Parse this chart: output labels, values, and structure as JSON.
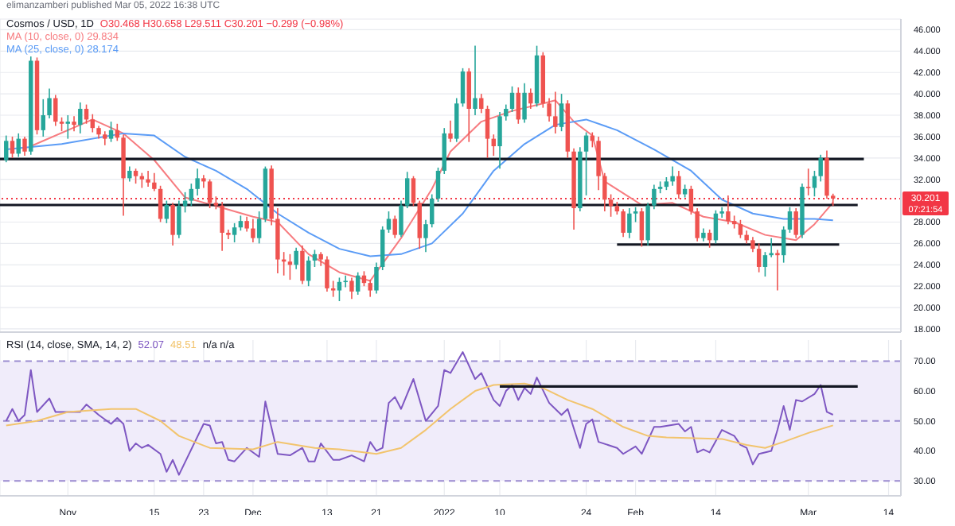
{
  "chart_data": [
    {
      "type": "candlestick",
      "title": "Cosmos / USD, 1D",
      "subtitle": "O30.468 H30.658 L29.511 C30.201 −0.299 (−0.98%)",
      "annotations": [
        "elimanzamberi published Mar 05, 2022 16:38 UTC",
        "07:21:54"
      ],
      "x": [
        "2021-10-22",
        "2021-10-23",
        "2021-10-24",
        "2021-10-25",
        "2021-10-26",
        "2021-10-27",
        "2021-10-28",
        "2021-10-29",
        "2021-10-30",
        "2021-10-31",
        "2021-11-01",
        "2021-11-02",
        "2021-11-03",
        "2021-11-04",
        "2021-11-05",
        "2021-11-06",
        "2021-11-07",
        "2021-11-08",
        "2021-11-09",
        "2021-11-10",
        "2021-11-11",
        "2021-11-12",
        "2021-11-13",
        "2021-11-14",
        "2021-11-15",
        "2021-11-16",
        "2021-11-17",
        "2021-11-18",
        "2021-11-19",
        "2021-11-20",
        "2021-11-21",
        "2021-11-22",
        "2021-11-23",
        "2021-11-24",
        "2021-11-25",
        "2021-11-26",
        "2021-11-27",
        "2021-11-28",
        "2021-11-29",
        "2021-11-30",
        "2021-12-01",
        "2021-12-02",
        "2021-12-03",
        "2021-12-04",
        "2021-12-05",
        "2021-12-06",
        "2021-12-07",
        "2021-12-08",
        "2021-12-09",
        "2021-12-10",
        "2021-12-11",
        "2021-12-12",
        "2021-12-13",
        "2021-12-14",
        "2021-12-15",
        "2021-12-16",
        "2021-12-17",
        "2021-12-18",
        "2021-12-19",
        "2021-12-20",
        "2021-12-21",
        "2021-12-22",
        "2021-12-23",
        "2021-12-24",
        "2021-12-25",
        "2021-12-26",
        "2021-12-27",
        "2021-12-28",
        "2021-12-29",
        "2021-12-30",
        "2021-12-31",
        "2022-01-01",
        "2022-01-02",
        "2022-01-03",
        "2022-01-04",
        "2022-01-05",
        "2022-01-06",
        "2022-01-07",
        "2022-01-08",
        "2022-01-09",
        "2022-01-10",
        "2022-01-11",
        "2022-01-12",
        "2022-01-13",
        "2022-01-14",
        "2022-01-15",
        "2022-01-16",
        "2022-01-17",
        "2022-01-18",
        "2022-01-19",
        "2022-01-20",
        "2022-01-21",
        "2022-01-22",
        "2022-01-23",
        "2022-01-24",
        "2022-01-25",
        "2022-01-26",
        "2022-01-27",
        "2022-01-28",
        "2022-01-29",
        "2022-01-30",
        "2022-01-31",
        "2022-02-01",
        "2022-02-02",
        "2022-02-03",
        "2022-02-04",
        "2022-02-05",
        "2022-02-06",
        "2022-02-07",
        "2022-02-08",
        "2022-02-09",
        "2022-02-10",
        "2022-02-11",
        "2022-02-12",
        "2022-02-13",
        "2022-02-14",
        "2022-02-15",
        "2022-02-16",
        "2022-02-17",
        "2022-02-18",
        "2022-02-19",
        "2022-02-20",
        "2022-02-21",
        "2022-02-22",
        "2022-02-23",
        "2022-02-24",
        "2022-02-25",
        "2022-02-26",
        "2022-02-27",
        "2022-02-28",
        "2022-03-01",
        "2022-03-02",
        "2022-03-03",
        "2022-03-04",
        "2022-03-05"
      ],
      "ohlc": [
        [
          33.8,
          36.1,
          33.6,
          35.6
        ],
        [
          35.6,
          36.0,
          34.0,
          34.4
        ],
        [
          34.4,
          36.3,
          34.1,
          35.8
        ],
        [
          35.8,
          36.0,
          34.2,
          34.6
        ],
        [
          34.6,
          43.5,
          34.3,
          43.1
        ],
        [
          43.1,
          43.4,
          36.2,
          36.6
        ],
        [
          36.6,
          39.5,
          36.0,
          38.0
        ],
        [
          38.0,
          40.5,
          37.7,
          39.6
        ],
        [
          39.6,
          39.9,
          37.0,
          37.4
        ],
        [
          37.4,
          37.8,
          36.5,
          37.2
        ],
        [
          37.2,
          38.0,
          35.8,
          37.4
        ],
        [
          37.4,
          37.9,
          36.5,
          37.1
        ],
        [
          37.1,
          39.2,
          36.3,
          38.6
        ],
        [
          38.6,
          39.0,
          37.2,
          37.6
        ],
        [
          37.6,
          38.1,
          36.4,
          36.8
        ],
        [
          36.8,
          37.0,
          35.8,
          36.2
        ],
        [
          36.2,
          36.5,
          35.2,
          35.8
        ],
        [
          35.8,
          37.4,
          35.5,
          36.6
        ],
        [
          36.6,
          37.2,
          35.6,
          35.9
        ],
        [
          35.9,
          36.2,
          28.6,
          32.1
        ],
        [
          32.1,
          33.2,
          31.8,
          32.8
        ],
        [
          32.8,
          33.0,
          31.6,
          32.3
        ],
        [
          32.3,
          32.6,
          31.2,
          32.0
        ],
        [
          32.0,
          32.8,
          31.3,
          31.7
        ],
        [
          31.7,
          32.6,
          30.9,
          31.1
        ],
        [
          31.1,
          31.4,
          28.0,
          28.3
        ],
        [
          28.3,
          30.0,
          27.9,
          29.6
        ],
        [
          29.6,
          29.8,
          25.8,
          26.8
        ],
        [
          26.8,
          30.0,
          26.5,
          29.5
        ],
        [
          29.5,
          30.8,
          28.9,
          30.0
        ],
        [
          30.0,
          31.6,
          29.5,
          31.1
        ],
        [
          31.1,
          33.0,
          30.5,
          32.1
        ],
        [
          32.1,
          32.4,
          31.2,
          31.8
        ],
        [
          31.8,
          32.0,
          29.3,
          29.8
        ],
        [
          29.8,
          30.4,
          29.2,
          29.55
        ],
        [
          29.55,
          29.9,
          25.3,
          27.0
        ],
        [
          27.0,
          27.3,
          26.4,
          26.8
        ],
        [
          26.8,
          27.9,
          26.1,
          27.5
        ],
        [
          27.5,
          28.6,
          27.2,
          28.1
        ],
        [
          28.1,
          28.5,
          27.1,
          27.4
        ],
        [
          27.4,
          28.3,
          26.1,
          26.5
        ],
        [
          26.5,
          29.0,
          26.0,
          28.3
        ],
        [
          28.3,
          33.2,
          28.0,
          33.0
        ],
        [
          33.0,
          33.3,
          27.7,
          28.3
        ],
        [
          28.3,
          29.3,
          23.2,
          24.5
        ],
        [
          24.5,
          25.2,
          23.0,
          24.3
        ],
        [
          24.3,
          25.0,
          22.6,
          24.0
        ],
        [
          24.0,
          25.6,
          23.6,
          25.3
        ],
        [
          25.3,
          25.8,
          22.2,
          22.5
        ],
        [
          22.5,
          24.8,
          22.0,
          24.4
        ],
        [
          24.4,
          25.4,
          23.8,
          25.0
        ],
        [
          25.0,
          25.2,
          23.9,
          24.5
        ],
        [
          24.5,
          24.8,
          21.5,
          21.8
        ],
        [
          21.8,
          22.5,
          21.0,
          21.6
        ],
        [
          21.6,
          22.8,
          20.6,
          22.4
        ],
        [
          22.4,
          23.0,
          21.9,
          22.5
        ],
        [
          22.5,
          22.8,
          20.8,
          21.5
        ],
        [
          21.5,
          23.3,
          21.2,
          23.0
        ],
        [
          23.0,
          23.4,
          22.0,
          22.3
        ],
        [
          22.3,
          22.6,
          21.0,
          21.6
        ],
        [
          21.6,
          24.2,
          21.3,
          23.8
        ],
        [
          23.8,
          27.6,
          23.5,
          27.3
        ],
        [
          27.3,
          29.0,
          27.0,
          28.3
        ],
        [
          28.3,
          28.6,
          26.5,
          26.8
        ],
        [
          26.8,
          30.0,
          26.6,
          29.55
        ],
        [
          29.55,
          32.7,
          29.3,
          32.1
        ],
        [
          32.1,
          32.3,
          29.5,
          29.8
        ],
        [
          29.8,
          30.0,
          25.5,
          26.5
        ],
        [
          26.5,
          28.2,
          25.2,
          27.8
        ],
        [
          27.8,
          30.6,
          27.5,
          30.2
        ],
        [
          30.2,
          33.1,
          29.9,
          32.8
        ],
        [
          32.8,
          36.8,
          32.5,
          36.3
        ],
        [
          36.3,
          37.5,
          35.5,
          35.8
        ],
        [
          35.8,
          39.6,
          35.5,
          39.1
        ],
        [
          39.1,
          42.4,
          38.8,
          42.1
        ],
        [
          42.1,
          42.4,
          35.5,
          38.6
        ],
        [
          38.6,
          44.5,
          38.0,
          39.6
        ],
        [
          39.6,
          40.0,
          38.2,
          38.6
        ],
        [
          38.6,
          38.9,
          34.0,
          35.8
        ],
        [
          35.8,
          36.2,
          34.2,
          35.1
        ],
        [
          35.1,
          38.3,
          33.0,
          37.9
        ],
        [
          37.9,
          39.0,
          37.5,
          38.6
        ],
        [
          38.6,
          40.7,
          38.3,
          40.1
        ],
        [
          40.1,
          40.6,
          37.2,
          37.6
        ],
        [
          37.6,
          41.0,
          37.3,
          40.1
        ],
        [
          40.1,
          40.5,
          38.6,
          39.1
        ],
        [
          39.1,
          44.5,
          38.8,
          43.6
        ],
        [
          43.6,
          43.9,
          38.7,
          39.1
        ],
        [
          39.1,
          39.6,
          37.4,
          37.9
        ],
        [
          37.9,
          40.2,
          36.3,
          36.9
        ],
        [
          36.9,
          40.0,
          36.5,
          39.1
        ],
        [
          39.1,
          39.4,
          34.0,
          34.6
        ],
        [
          34.6,
          34.9,
          27.3,
          29.3
        ],
        [
          29.3,
          35.0,
          29.0,
          34.6
        ],
        [
          34.6,
          36.4,
          30.5,
          36.1
        ],
        [
          36.1,
          36.4,
          35.0,
          35.6
        ],
        [
          35.6,
          36.0,
          31.0,
          32.3
        ],
        [
          32.3,
          32.6,
          29.0,
          30.1
        ],
        [
          30.1,
          30.6,
          28.5,
          29.5
        ],
        [
          29.5,
          29.9,
          28.7,
          29.0
        ],
        [
          29.0,
          29.2,
          26.6,
          27.0
        ],
        [
          27.0,
          29.3,
          26.5,
          28.8
        ],
        [
          28.8,
          29.4,
          28.0,
          29.0
        ],
        [
          29.0,
          29.3,
          25.7,
          26.3
        ],
        [
          26.3,
          29.8,
          25.8,
          29.55
        ],
        [
          29.55,
          31.5,
          29.2,
          31.1
        ],
        [
          31.1,
          31.8,
          30.7,
          31.3
        ],
        [
          31.3,
          32.2,
          31.0,
          31.8
        ],
        [
          31.8,
          33.2,
          31.4,
          32.3
        ],
        [
          32.3,
          32.8,
          30.2,
          30.6
        ],
        [
          30.6,
          31.5,
          30.3,
          31.1
        ],
        [
          31.1,
          31.4,
          28.7,
          29.0
        ],
        [
          29.0,
          29.3,
          26.2,
          26.5
        ],
        [
          26.5,
          27.4,
          26.2,
          27.0
        ],
        [
          27.0,
          27.3,
          25.6,
          26.3
        ],
        [
          26.3,
          29.1,
          26.0,
          28.8
        ],
        [
          28.8,
          29.4,
          28.4,
          29.0
        ],
        [
          29.0,
          30.5,
          27.8,
          28.1
        ],
        [
          28.1,
          28.6,
          27.4,
          27.8
        ],
        [
          27.8,
          28.2,
          26.5,
          26.8
        ],
        [
          26.8,
          27.2,
          26.0,
          26.3
        ],
        [
          26.3,
          26.6,
          25.2,
          25.5
        ],
        [
          25.5,
          26.0,
          23.3,
          23.8
        ],
        [
          23.8,
          25.2,
          22.9,
          24.9
        ],
        [
          24.9,
          26.5,
          24.7,
          25.1
        ],
        [
          25.1,
          25.4,
          21.6,
          24.9
        ],
        [
          24.9,
          27.6,
          24.2,
          27.3
        ],
        [
          27.3,
          29.4,
          27.0,
          29.0
        ],
        [
          29.0,
          29.3,
          26.5,
          26.8
        ],
        [
          26.8,
          31.6,
          26.5,
          31.3
        ],
        [
          31.3,
          33.0,
          30.5,
          31.2
        ],
        [
          31.2,
          32.8,
          30.4,
          32.3
        ],
        [
          32.3,
          34.3,
          31.8,
          34.0
        ],
        [
          34.0,
          34.7,
          30.2,
          30.468
        ],
        [
          30.468,
          30.658,
          29.511,
          30.201
        ]
      ],
      "colors": [
        "#26a69a",
        "#ef5350",
        "#26a69a",
        "#ef5350",
        "#26a69a",
        "#ef5350",
        "#26a69a",
        "#26a69a",
        "#ef5350",
        "#ef5350",
        "#26a69a",
        "#ef5350",
        "#26a69a",
        "#ef5350",
        "#ef5350",
        "#ef5350",
        "#ef5350",
        "#26a69a",
        "#ef5350",
        "#ef5350",
        "#26a69a",
        "#ef5350",
        "#ef5350",
        "#ef5350",
        "#ef5350",
        "#ef5350",
        "#26a69a",
        "#ef5350",
        "#26a69a",
        "#26a69a",
        "#26a69a",
        "#26a69a",
        "#ef5350",
        "#ef5350",
        "#ef5350",
        "#ef5350",
        "#ef5350",
        "#26a69a",
        "#26a69a",
        "#ef5350",
        "#ef5350",
        "#26a69a",
        "#26a69a",
        "#ef5350",
        "#ef5350",
        "#ef5350",
        "#ef5350",
        "#26a69a",
        "#ef5350",
        "#26a69a",
        "#26a69a",
        "#ef5350",
        "#ef5350",
        "#ef5350",
        "#26a69a",
        "#26a69a",
        "#ef5350",
        "#26a69a",
        "#ef5350",
        "#ef5350",
        "#26a69a",
        "#26a69a",
        "#26a69a",
        "#ef5350",
        "#26a69a",
        "#26a69a",
        "#ef5350",
        "#ef5350",
        "#26a69a",
        "#26a69a",
        "#26a69a",
        "#26a69a",
        "#ef5350",
        "#26a69a",
        "#26a69a",
        "#ef5350",
        "#26a69a",
        "#ef5350",
        "#ef5350",
        "#ef5350",
        "#26a69a",
        "#26a69a",
        "#26a69a",
        "#ef5350",
        "#26a69a",
        "#ef5350",
        "#26a69a",
        "#ef5350",
        "#ef5350",
        "#ef5350",
        "#26a69a",
        "#ef5350",
        "#ef5350",
        "#26a69a",
        "#26a69a",
        "#ef5350",
        "#ef5350",
        "#ef5350",
        "#ef5350",
        "#ef5350",
        "#ef5350",
        "#26a69a",
        "#26a69a",
        "#ef5350",
        "#26a69a",
        "#26a69a",
        "#26a69a",
        "#26a69a",
        "#26a69a",
        "#ef5350",
        "#26a69a",
        "#ef5350",
        "#ef5350",
        "#26a69a",
        "#ef5350",
        "#26a69a",
        "#26a69a",
        "#ef5350",
        "#ef5350",
        "#ef5350",
        "#ef5350",
        "#ef5350",
        "#ef5350",
        "#26a69a",
        "#26a69a",
        "#ef5350",
        "#26a69a",
        "#26a69a",
        "#ef5350",
        "#26a69a",
        "#ef5350",
        "#26a69a",
        "#26a69a",
        "#ef5350",
        "#ef5350"
      ],
      "series": [
        {
          "type": "line",
          "name": "MA (10, close, 0) 29.834",
          "color": "#f77c80",
          "x": [
            "2021-10-26",
            "2021-11-05",
            "2021-11-10",
            "2021-11-15",
            "2021-11-20",
            "2021-11-25",
            "2021-12-01",
            "2021-12-05",
            "2021-12-10",
            "2021-12-15",
            "2021-12-20",
            "2021-12-25",
            "2021-12-30",
            "2022-01-02",
            "2022-01-07",
            "2022-01-12",
            "2022-01-17",
            "2022-01-19",
            "2022-01-22",
            "2022-01-25",
            "2022-01-27",
            "2022-02-02",
            "2022-02-07",
            "2022-02-12",
            "2022-02-17",
            "2022-02-22",
            "2022-02-27",
            "2022-03-02",
            "2022-03-05"
          ],
          "values": [
            35.1,
            37.6,
            36.3,
            33.8,
            30.3,
            29.5,
            28.5,
            28.0,
            25.0,
            23.3,
            22.5,
            26.5,
            31.1,
            34.6,
            37.4,
            38.4,
            39.1,
            39.4,
            37.4,
            36.1,
            31.8,
            29.6,
            29.8,
            28.5,
            28.0,
            26.8,
            26.3,
            27.8,
            29.834
          ]
        },
        {
          "type": "line",
          "name": "MA (25, close, 0) 28.174",
          "color": "#5b9cf6",
          "x": [
            "2021-10-22",
            "2021-10-31",
            "2021-11-10",
            "2021-11-15",
            "2021-11-20",
            "2021-11-25",
            "2021-11-30",
            "2021-12-05",
            "2021-12-10",
            "2021-12-15",
            "2021-12-20",
            "2021-12-25",
            "2021-12-30",
            "2022-01-04",
            "2022-01-09",
            "2022-01-14",
            "2022-01-19",
            "2022-01-24",
            "2022-01-29",
            "2022-02-04",
            "2022-02-10",
            "2022-02-15",
            "2022-02-20",
            "2022-02-25",
            "2022-03-02",
            "2022-03-05"
          ],
          "values": [
            34.8,
            35.3,
            36.3,
            36.1,
            34.1,
            32.8,
            31.1,
            28.8,
            27.0,
            25.5,
            24.8,
            25.0,
            26.0,
            28.8,
            32.8,
            35.3,
            37.1,
            37.6,
            36.6,
            34.8,
            32.8,
            30.1,
            28.8,
            28.3,
            28.3,
            28.174
          ]
        },
        {
          "type": "line",
          "color": "#131722",
          "x": [
            "2021-10-21",
            "2022-03-10"
          ],
          "values": [
            33.9,
            33.9
          ]
        },
        {
          "type": "line",
          "color": "#131722",
          "x": [
            "2021-10-21",
            "2022-03-09"
          ],
          "values": [
            29.6,
            29.6
          ]
        },
        {
          "type": "line",
          "color": "#131722",
          "x": [
            "2022-01-29",
            "2022-03-06"
          ],
          "values": [
            25.9,
            25.9
          ]
        }
      ],
      "xlim": [
        "2021-10-21",
        "2022-03-16"
      ],
      "xticks": [
        {
          "value": "2021-11-01",
          "label": null
        },
        {
          "value": "2021-11-15",
          "label": null
        },
        {
          "value": "2021-11-23",
          "label": null
        },
        {
          "value": "2021-12-01",
          "label": null
        },
        {
          "value": "2021-12-13",
          "label": null
        },
        {
          "value": "2021-12-21",
          "label": null
        },
        {
          "value": "2022-01-01",
          "label": null
        },
        {
          "value": "2022-01-10",
          "label": null
        },
        {
          "value": "2022-01-24",
          "label": null
        },
        {
          "value": "2022-02-01",
          "label": null
        },
        {
          "value": "2022-02-14",
          "label": null
        },
        {
          "value": "2022-03-01",
          "label": null
        },
        {
          "value": "2022-03-14",
          "label": null
        }
      ],
      "ylim": [
        17.7,
        47
      ],
      "yticks": [
        {
          "value": 18,
          "label": "18.000"
        },
        {
          "value": 20,
          "label": "20.000"
        },
        {
          "value": 22,
          "label": "22.000"
        },
        {
          "value": 24,
          "label": "24.000"
        },
        {
          "value": 26,
          "label": "26.000"
        },
        {
          "value": 28,
          "label": "28.000"
        },
        {
          "value": 32,
          "label": "32.000"
        },
        {
          "value": 34,
          "label": "34.000"
        },
        {
          "value": 36,
          "label": "36.000"
        },
        {
          "value": 38,
          "label": "38.000"
        },
        {
          "value": 40,
          "label": "40.000"
        },
        {
          "value": 42,
          "label": "42.000"
        },
        {
          "value": 44,
          "label": "44.000"
        },
        {
          "value": 46,
          "label": "46.000"
        }
      ],
      "ref_lines": [
        {
          "axis": "y",
          "value": 30.201,
          "label": "30.201",
          "color": "#f23645",
          "line_style": "dotted"
        }
      ],
      "grid": true,
      "legend": "top left",
      "marker": "none",
      "tick_labels": "y"
    },
    {
      "type": "line",
      "legend_title": "RSI (14, close, SMA, 14, 2)",
      "annotations": [
        "n/a n/a"
      ],
      "series": [
        {
          "name": "52.07",
          "color": "#7e57c2",
          "x": [
            "2021-10-22",
            "2021-10-23",
            "2021-10-24",
            "2021-10-25",
            "2021-10-26",
            "2021-10-27",
            "2021-10-29",
            "2021-10-30",
            "2021-11-03",
            "2021-11-04",
            "2021-11-06",
            "2021-11-08",
            "2021-11-09",
            "2021-11-10",
            "2021-11-11",
            "2021-11-12",
            "2021-11-13",
            "2021-11-14",
            "2021-11-16",
            "2021-11-17",
            "2021-11-18",
            "2021-11-19",
            "2021-11-23",
            "2021-11-24",
            "2021-11-25",
            "2021-11-26",
            "2021-11-27",
            "2021-11-28",
            "2021-11-30",
            "2021-12-02",
            "2021-12-03",
            "2021-12-05",
            "2021-12-07",
            "2021-12-09",
            "2021-12-10",
            "2021-12-11",
            "2021-12-12",
            "2021-12-14",
            "2021-12-15",
            "2021-12-17",
            "2021-12-19",
            "2021-12-20",
            "2021-12-21",
            "2021-12-22",
            "2021-12-23",
            "2021-12-24",
            "2021-12-25",
            "2021-12-27",
            "2021-12-29",
            "2021-12-31",
            "2022-01-01",
            "2022-01-02",
            "2022-01-04",
            "2022-01-06",
            "2022-01-07",
            "2022-01-09",
            "2022-01-10",
            "2022-01-11",
            "2022-01-12",
            "2022-01-13",
            "2022-01-14",
            "2022-01-15",
            "2022-01-16",
            "2022-01-18",
            "2022-01-20",
            "2022-01-21",
            "2022-01-23",
            "2022-01-24",
            "2022-01-25",
            "2022-01-26",
            "2022-01-29",
            "2022-01-30",
            "2022-02-01",
            "2022-02-02",
            "2022-02-04",
            "2022-02-05",
            "2022-02-08",
            "2022-02-09",
            "2022-02-10",
            "2022-02-11",
            "2022-02-12",
            "2022-02-13",
            "2022-02-15",
            "2022-02-17",
            "2022-02-18",
            "2022-02-19",
            "2022-02-20",
            "2022-02-21",
            "2022-02-23",
            "2022-02-24",
            "2022-02-25",
            "2022-02-26",
            "2022-02-27",
            "2022-02-28",
            "2022-03-02",
            "2022-03-03",
            "2022-03-04",
            "2022-03-05"
          ],
          "values": [
            50,
            54,
            50,
            52,
            67,
            53,
            57.5,
            53,
            53,
            55.5,
            52,
            49,
            51,
            49,
            40,
            42.5,
            41,
            42,
            39,
            33,
            37,
            32,
            49,
            48.5,
            42.5,
            43,
            37,
            36.5,
            41,
            38,
            56.5,
            39,
            38.5,
            41,
            36.5,
            36.5,
            42.5,
            37,
            37,
            38.5,
            36.5,
            43,
            40,
            41,
            56,
            58,
            54,
            64,
            50,
            55,
            67,
            66,
            73,
            64,
            66,
            57,
            55,
            60,
            62,
            57,
            61,
            59,
            64.5,
            56,
            52,
            54,
            41,
            49,
            50.5,
            43,
            41,
            39,
            41.5,
            39,
            48,
            48,
            49,
            46.5,
            48,
            39.5,
            40.5,
            39.5,
            47,
            45,
            42,
            41,
            35.5,
            39,
            40,
            47,
            55,
            47,
            57,
            56.5,
            59,
            62,
            53,
            52.07
          ]
        },
        {
          "name": "48.51",
          "color": "#f2c46d",
          "x": [
            "2021-10-22",
            "2021-10-27",
            "2021-11-01",
            "2021-11-08",
            "2021-11-12",
            "2021-11-16",
            "2021-11-19",
            "2021-11-24",
            "2021-12-01",
            "2021-12-05",
            "2021-12-11",
            "2021-12-15",
            "2021-12-21",
            "2021-12-25",
            "2021-12-29",
            "2022-01-02",
            "2022-01-06",
            "2022-01-09",
            "2022-01-14",
            "2022-01-17",
            "2022-01-21",
            "2022-01-25",
            "2022-01-30",
            "2022-02-03",
            "2022-02-06",
            "2022-02-15",
            "2022-02-19",
            "2022-02-22",
            "2022-02-25",
            "2022-03-01",
            "2022-03-05"
          ],
          "values": [
            48.5,
            50,
            53,
            54,
            54,
            50,
            45,
            41,
            40.5,
            43,
            41,
            40.5,
            39,
            41,
            47,
            54,
            60,
            62,
            62.5,
            61,
            57,
            54,
            48,
            45,
            44.5,
            44,
            42,
            41,
            43,
            46,
            48.51
          ]
        },
        {
          "color": "#131722",
          "x": [
            "2022-01-10",
            "2022-03-09"
          ],
          "values": [
            61.5,
            61.5
          ]
        }
      ],
      "xlim": [
        "2021-10-21",
        "2022-03-16"
      ],
      "xticks": [
        {
          "value": "2021-11-01",
          "label": "Nov"
        },
        {
          "value": "2021-11-15",
          "label": "15"
        },
        {
          "value": "2021-11-23",
          "label": "23"
        },
        {
          "value": "2021-12-01",
          "label": "Dec"
        },
        {
          "value": "2021-12-13",
          "label": "13"
        },
        {
          "value": "2021-12-21",
          "label": "21"
        },
        {
          "value": "2022-01-01",
          "label": "2022"
        },
        {
          "value": "2022-01-10",
          "label": "10"
        },
        {
          "value": "2022-01-24",
          "label": "24"
        },
        {
          "value": "2022-02-01",
          "label": "Feb"
        },
        {
          "value": "2022-02-14",
          "label": "14"
        },
        {
          "value": "2022-03-01",
          "label": "Mar"
        },
        {
          "value": "2022-03-14",
          "label": "14"
        }
      ],
      "ylim": [
        25,
        77
      ],
      "yticks": [
        {
          "value": 30,
          "label": "30.00"
        },
        {
          "value": 40,
          "label": "40.00"
        },
        {
          "value": 50,
          "label": "50.00"
        },
        {
          "value": 60,
          "label": "60.00"
        },
        {
          "value": 70,
          "label": "70.00"
        }
      ],
      "bands": [
        {
          "axis": "y",
          "from": 30,
          "to": 70,
          "color": "#f0ecfa"
        }
      ],
      "ref_lines": [
        {
          "axis": "y",
          "value": 30,
          "color": "#9a8bd0",
          "line_style": "dashed"
        },
        {
          "axis": "y",
          "value": 50,
          "color": "#9a8bd0",
          "line_style": "dashed"
        },
        {
          "axis": "y",
          "value": 70,
          "color": "#9a8bd0",
          "line_style": "dashed"
        }
      ],
      "grid": "x",
      "legend": "top left",
      "marker": "none"
    }
  ]
}
